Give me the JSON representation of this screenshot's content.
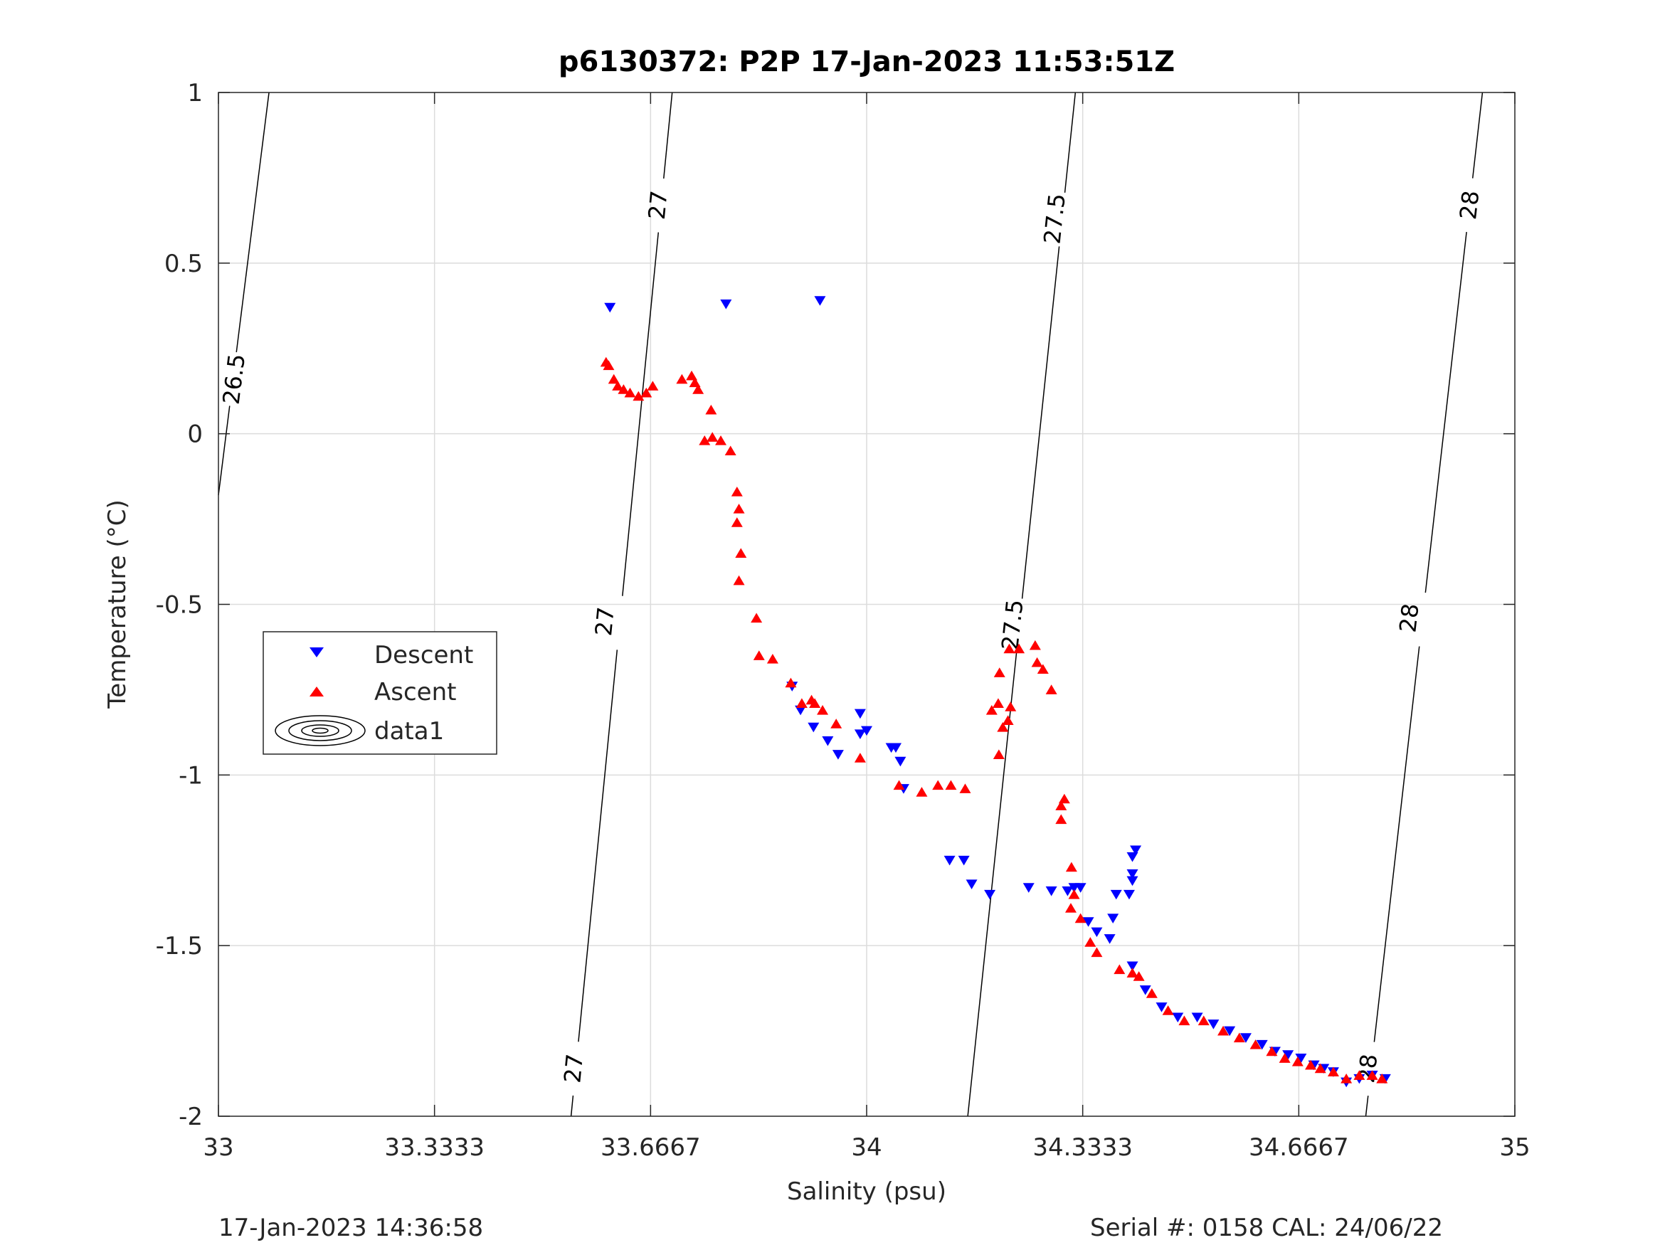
{
  "chart_data": {
    "type": "scatter",
    "title": "p6130372: P2P 17-Jan-2023 11:53:51Z",
    "xlabel": "Salinity (psu)",
    "ylabel": "Temperature (°C)",
    "xlim": [
      33,
      35
    ],
    "ylim": [
      -2,
      1
    ],
    "x_ticks": [
      "33",
      "33.3333",
      "33.6667",
      "34",
      "34.3333",
      "34.6667",
      "35"
    ],
    "y_ticks": [
      "1",
      "0.5",
      "0",
      "-0.5",
      "-1",
      "-1.5",
      "-2"
    ],
    "grid": true,
    "legend_position": "left",
    "footer_left": "17-Jan-2023 14:36:58",
    "footer_right": "Serial #: 0158  CAL: 24/06/22",
    "colors": {
      "descent": "#0000ff",
      "ascent": "#ff0000",
      "contour": "#000000",
      "grid": "#dcdcdc"
    },
    "series": [
      {
        "name": "Descent",
        "marker": "triangle-down",
        "color": "#0000ff",
        "points": [
          [
            33.604,
            0.37
          ],
          [
            33.783,
            0.38
          ],
          [
            33.928,
            0.39
          ],
          [
            33.885,
            -0.74
          ],
          [
            33.898,
            -0.81
          ],
          [
            33.918,
            -0.86
          ],
          [
            33.94,
            -0.9
          ],
          [
            33.956,
            -0.94
          ],
          [
            33.99,
            -0.82
          ],
          [
            33.99,
            -0.88
          ],
          [
            34.0,
            -0.87
          ],
          [
            34.038,
            -0.92
          ],
          [
            34.045,
            -0.92
          ],
          [
            34.052,
            -0.96
          ],
          [
            34.057,
            -1.04
          ],
          [
            34.128,
            -1.25
          ],
          [
            34.15,
            -1.25
          ],
          [
            34.162,
            -1.32
          ],
          [
            34.19,
            -1.35
          ],
          [
            34.25,
            -1.33
          ],
          [
            34.285,
            -1.34
          ],
          [
            34.31,
            -1.34
          ],
          [
            34.32,
            -1.33
          ],
          [
            34.33,
            -1.33
          ],
          [
            34.342,
            -1.43
          ],
          [
            34.355,
            -1.46
          ],
          [
            34.375,
            -1.48
          ],
          [
            34.38,
            -1.42
          ],
          [
            34.385,
            -1.35
          ],
          [
            34.405,
            -1.35
          ],
          [
            34.41,
            -1.56
          ],
          [
            34.41,
            -1.24
          ],
          [
            34.415,
            -1.22
          ],
          [
            34.41,
            -1.29
          ],
          [
            34.41,
            -1.31
          ],
          [
            34.43,
            -1.63
          ],
          [
            34.455,
            -1.68
          ],
          [
            34.48,
            -1.71
          ],
          [
            34.51,
            -1.71
          ],
          [
            34.535,
            -1.73
          ],
          [
            34.56,
            -1.75
          ],
          [
            34.585,
            -1.77
          ],
          [
            34.61,
            -1.79
          ],
          [
            34.63,
            -1.81
          ],
          [
            34.65,
            -1.82
          ],
          [
            34.67,
            -1.83
          ],
          [
            34.69,
            -1.85
          ],
          [
            34.705,
            -1.86
          ],
          [
            34.72,
            -1.87
          ],
          [
            34.74,
            -1.9
          ],
          [
            34.76,
            -1.89
          ],
          [
            34.78,
            -1.88
          ],
          [
            34.8,
            -1.89
          ]
        ]
      },
      {
        "name": "Ascent",
        "marker": "triangle-up",
        "color": "#ff0000",
        "points": [
          [
            33.598,
            0.21
          ],
          [
            33.602,
            0.2
          ],
          [
            33.61,
            0.16
          ],
          [
            33.616,
            0.14
          ],
          [
            33.625,
            0.13
          ],
          [
            33.635,
            0.12
          ],
          [
            33.648,
            0.11
          ],
          [
            33.66,
            0.12
          ],
          [
            33.67,
            0.14
          ],
          [
            33.715,
            0.16
          ],
          [
            33.73,
            0.17
          ],
          [
            33.735,
            0.15
          ],
          [
            33.74,
            0.13
          ],
          [
            33.75,
            -0.02
          ],
          [
            33.76,
            0.07
          ],
          [
            33.762,
            -0.01
          ],
          [
            33.775,
            -0.02
          ],
          [
            33.79,
            -0.05
          ],
          [
            33.8,
            -0.17
          ],
          [
            33.803,
            -0.22
          ],
          [
            33.8,
            -0.26
          ],
          [
            33.806,
            -0.35
          ],
          [
            33.803,
            -0.43
          ],
          [
            33.83,
            -0.54
          ],
          [
            33.834,
            -0.65
          ],
          [
            33.855,
            -0.66
          ],
          [
            33.883,
            -0.73
          ],
          [
            33.9,
            -0.79
          ],
          [
            33.915,
            -0.78
          ],
          [
            33.92,
            -0.79
          ],
          [
            33.932,
            -0.81
          ],
          [
            33.953,
            -0.85
          ],
          [
            33.99,
            -0.95
          ],
          [
            34.05,
            -1.03
          ],
          [
            34.085,
            -1.05
          ],
          [
            34.11,
            -1.03
          ],
          [
            34.13,
            -1.03
          ],
          [
            34.152,
            -1.04
          ],
          [
            34.193,
            -0.81
          ],
          [
            34.203,
            -0.79
          ],
          [
            34.205,
            -0.7
          ],
          [
            34.204,
            -0.94
          ],
          [
            34.21,
            -0.86
          ],
          [
            34.218,
            -0.84
          ],
          [
            34.222,
            -0.8
          ],
          [
            34.22,
            -0.63
          ],
          [
            34.235,
            -0.63
          ],
          [
            34.26,
            -0.62
          ],
          [
            34.263,
            -0.67
          ],
          [
            34.272,
            -0.69
          ],
          [
            34.285,
            -0.75
          ],
          [
            34.3,
            -1.09
          ],
          [
            34.305,
            -1.07
          ],
          [
            34.3,
            -1.13
          ],
          [
            34.316,
            -1.27
          ],
          [
            34.32,
            -1.35
          ],
          [
            34.315,
            -1.39
          ],
          [
            34.33,
            -1.42
          ],
          [
            34.345,
            -1.49
          ],
          [
            34.355,
            -1.52
          ],
          [
            34.39,
            -1.57
          ],
          [
            34.41,
            -1.58
          ],
          [
            34.42,
            -1.59
          ],
          [
            34.44,
            -1.64
          ],
          [
            34.465,
            -1.69
          ],
          [
            34.49,
            -1.72
          ],
          [
            34.52,
            -1.72
          ],
          [
            34.55,
            -1.75
          ],
          [
            34.575,
            -1.77
          ],
          [
            34.6,
            -1.79
          ],
          [
            34.625,
            -1.81
          ],
          [
            34.645,
            -1.83
          ],
          [
            34.665,
            -1.84
          ],
          [
            34.685,
            -1.85
          ],
          [
            34.7,
            -1.86
          ],
          [
            34.72,
            -1.87
          ],
          [
            34.74,
            -1.89
          ],
          [
            34.76,
            -1.88
          ],
          [
            34.78,
            -1.88
          ],
          [
            34.795,
            -1.89
          ]
        ]
      }
    ],
    "contours": [
      {
        "label": "26.5",
        "points": [
          [
            33.0,
            -0.18
          ],
          [
            33.078,
            1.0
          ]
        ],
        "label_positions": [
          [
            33.024,
            0.16
          ]
        ]
      },
      {
        "label": "27",
        "points": [
          [
            33.544,
            -2.0
          ],
          [
            33.7,
            1.0
          ]
        ],
        "label_positions": [
          [
            33.548,
            -1.86
          ],
          [
            33.596,
            -0.55
          ],
          [
            33.678,
            0.67
          ]
        ]
      },
      {
        "label": "27.5",
        "points": [
          [
            34.156,
            -2.0
          ],
          [
            34.322,
            1.0
          ]
        ],
        "label_positions": [
          [
            34.225,
            -0.56
          ],
          [
            34.29,
            0.63
          ]
        ]
      },
      {
        "label": "28",
        "points": [
          [
            34.77,
            -2.0
          ],
          [
            34.95,
            1.0
          ]
        ],
        "label_positions": [
          [
            34.773,
            -1.86
          ],
          [
            34.837,
            -0.54
          ],
          [
            34.93,
            0.67
          ]
        ]
      }
    ],
    "legend": {
      "entries": [
        {
          "label": "Descent",
          "marker": "triangle-down",
          "color": "#0000ff"
        },
        {
          "label": "Ascent",
          "marker": "triangle-up",
          "color": "#ff0000"
        },
        {
          "label": "data1",
          "marker": "contour-ellipses",
          "color": "#000000"
        }
      ]
    }
  }
}
